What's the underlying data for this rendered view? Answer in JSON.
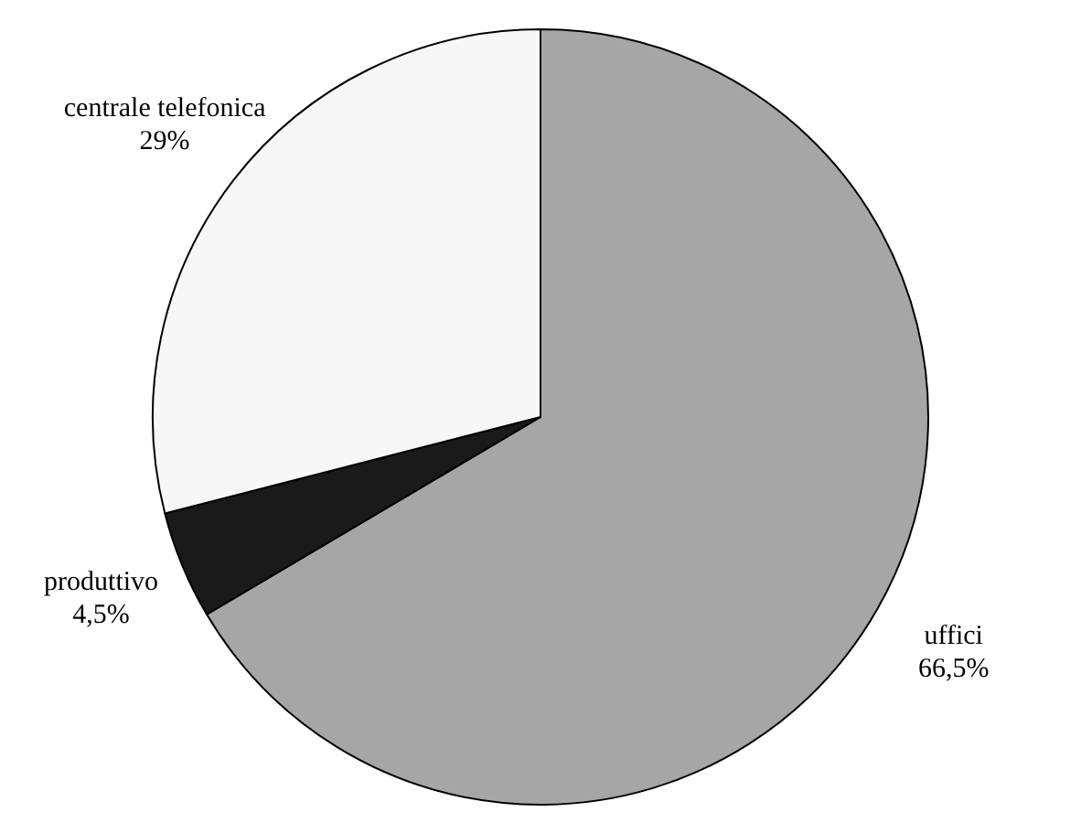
{
  "chart_data": {
    "type": "pie",
    "categories": [
      "uffici",
      "produttivo",
      "centrale telefonica"
    ],
    "values": [
      66.5,
      4.5,
      29
    ],
    "colors": [
      "#a6a6a6",
      "#1a1a1a",
      "#f7f7f7"
    ],
    "value_labels": [
      "66,5%",
      "4,5%",
      "29%"
    ]
  }
}
